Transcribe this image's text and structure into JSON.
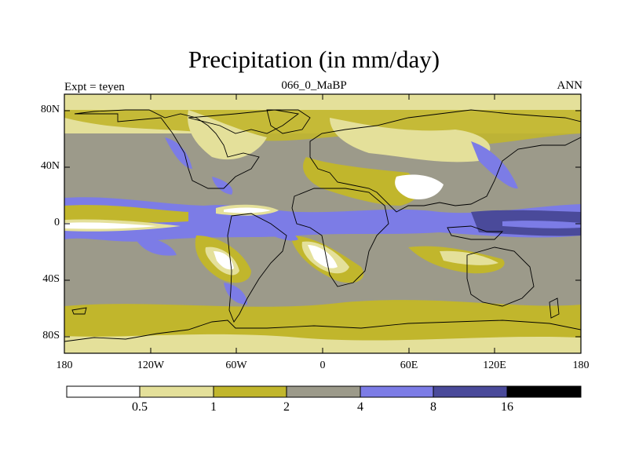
{
  "title": "Precipitation (in mm/day)",
  "left_label": "Expt = teyen",
  "center_label": "066_0_MaBP",
  "right_label": "ANN",
  "lat_ticks": [
    "80N",
    "40N",
    "0",
    "40S",
    "80S"
  ],
  "lon_ticks": [
    "180",
    "120W",
    "60W",
    "0",
    "60E",
    "120E",
    "180"
  ],
  "colorbar": {
    "levels": [
      "0.5",
      "1",
      "2",
      "4",
      "8",
      "16"
    ],
    "colors": [
      "#ffffff",
      "#e4e09a",
      "#c1b62c",
      "#9c9a8a",
      "#7c7ce6",
      "#4a4a9a",
      "#000000"
    ]
  }
}
